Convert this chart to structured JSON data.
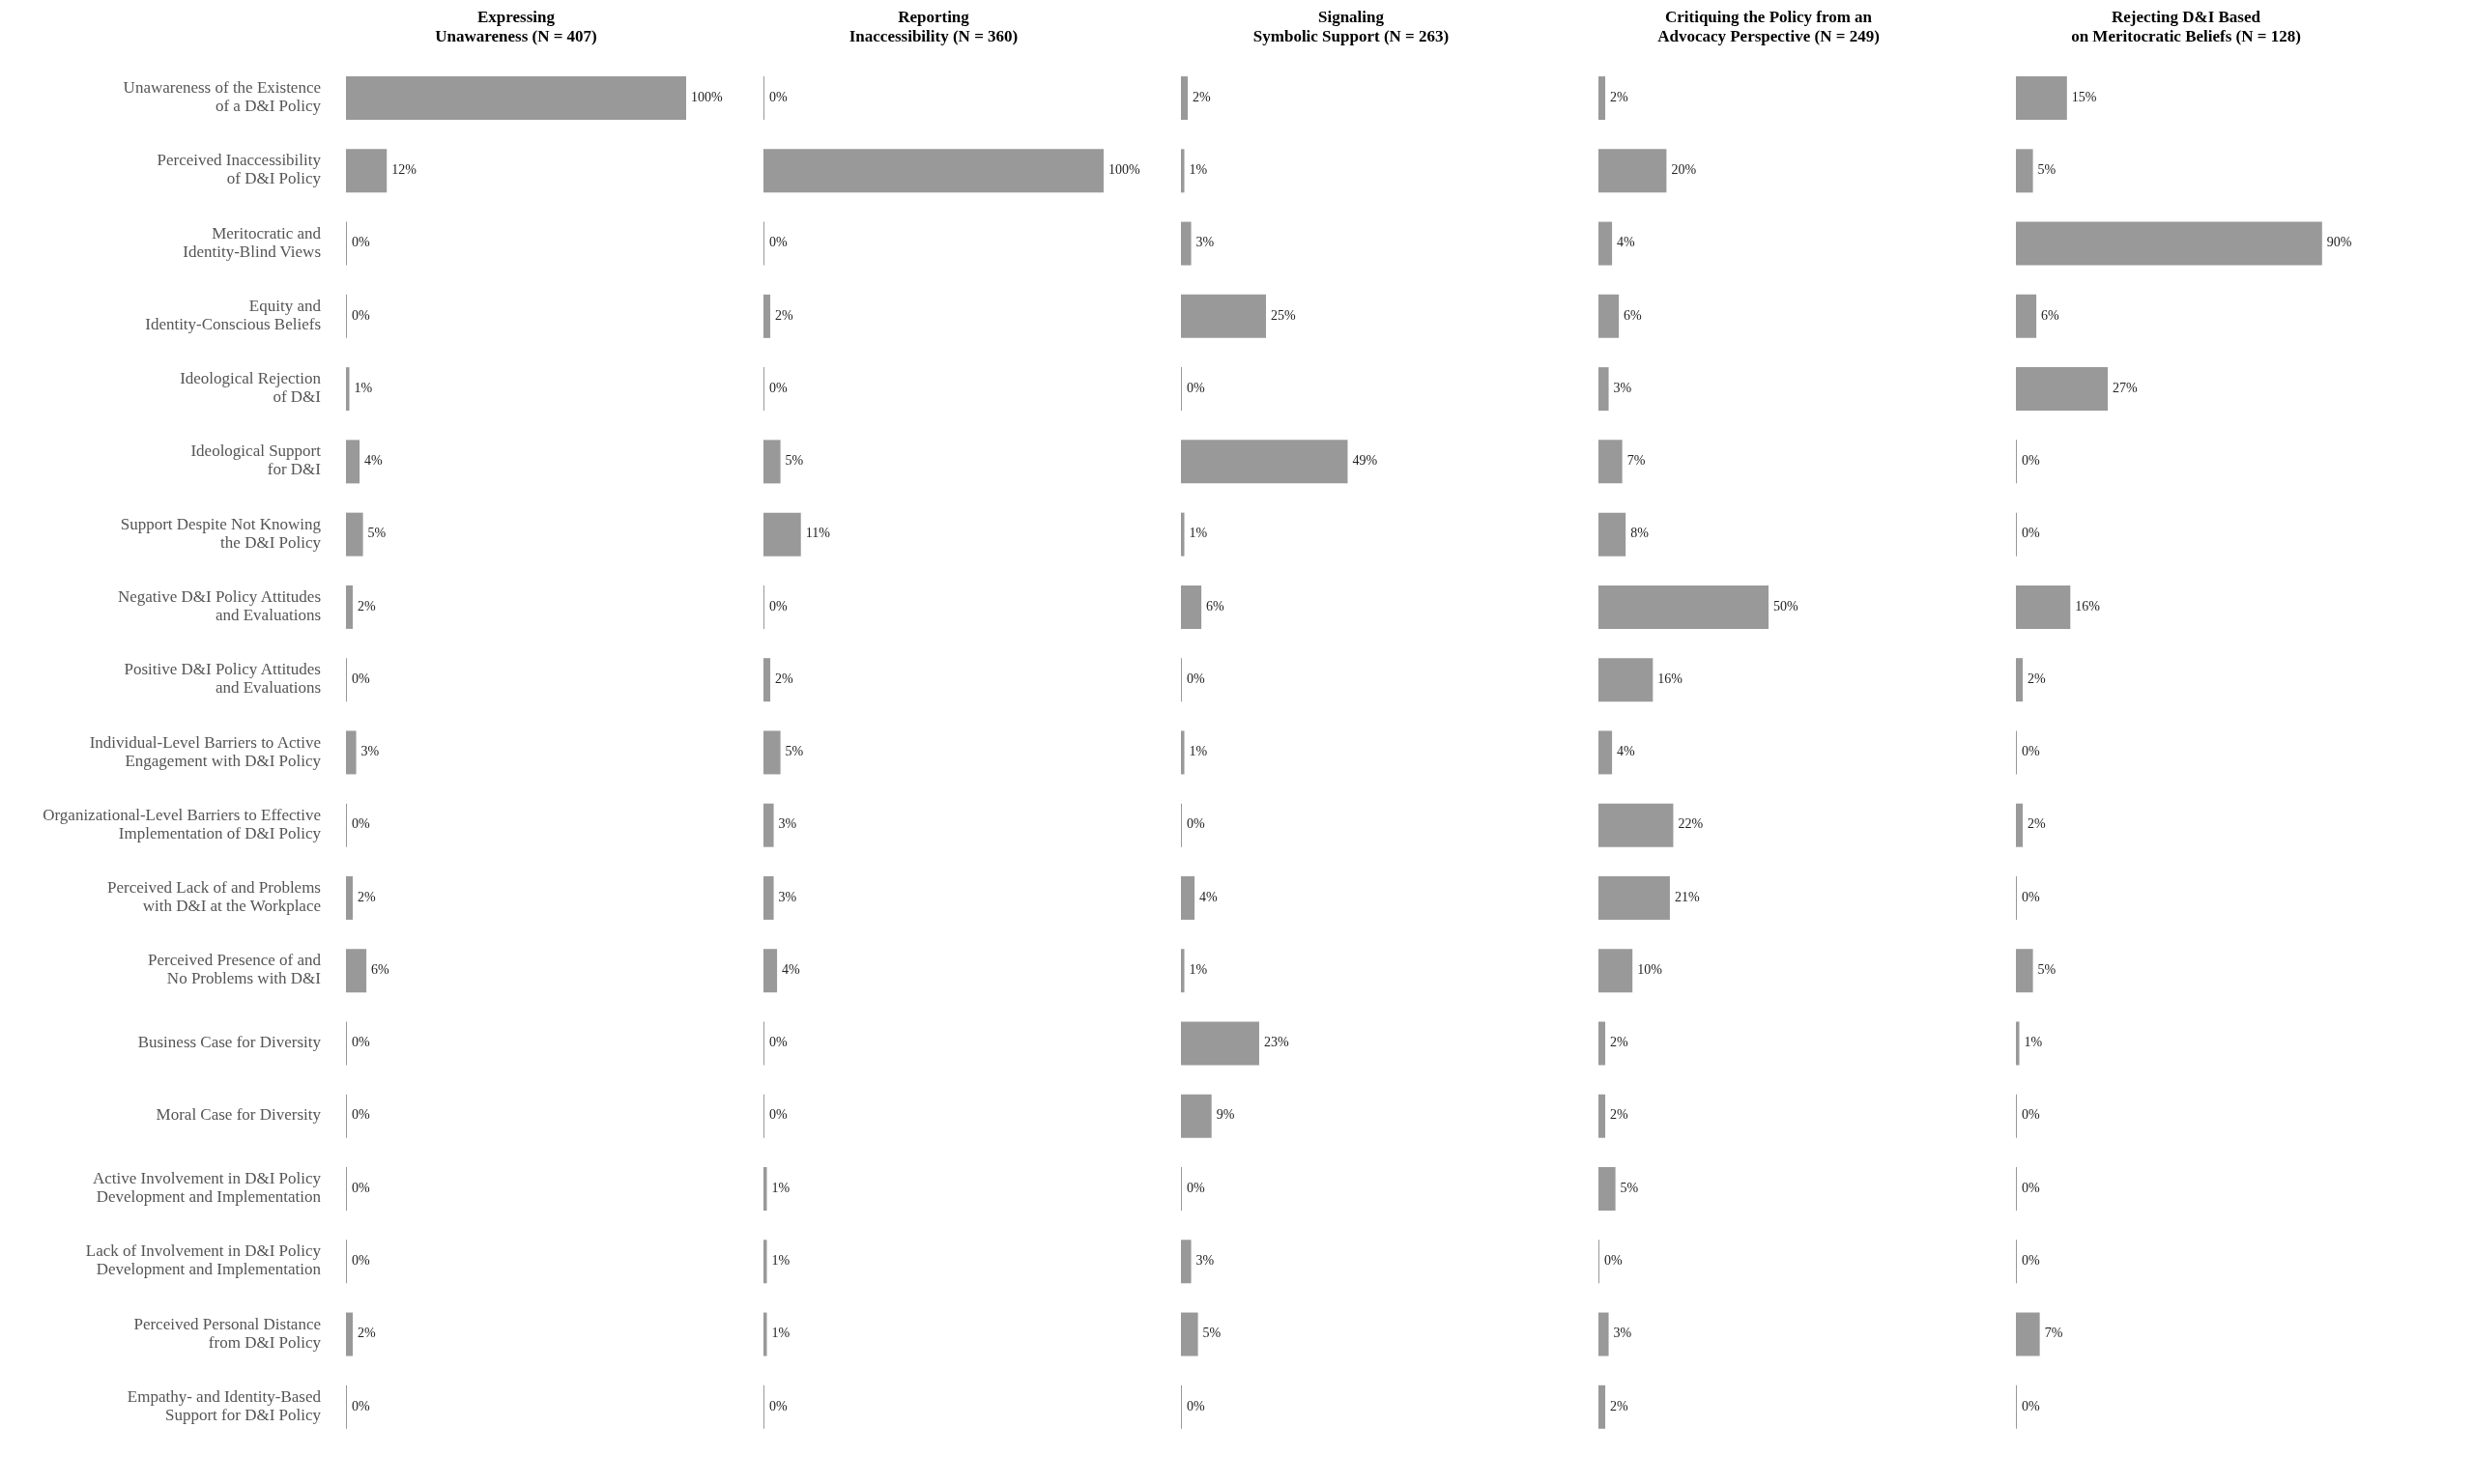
{
  "chart_data": [
    {
      "type": "bar",
      "orientation": "horizontal",
      "title": "Expressing\nUnawareness (N = 407)",
      "color": "#999999",
      "tick_labels": "y",
      "categories": [
        "Unawareness of the Existence\nof a D&I Policy",
        "Perceived Inaccessibility\nof D&I Policy",
        "Meritocratic and\nIdentity-Blind Views",
        "Equity and\nIdentity-Conscious Beliefs",
        "Ideological Rejection\nof D&I",
        "Ideological Support\nfor D&I",
        "Support Despite Not Knowing\nthe D&I Policy",
        "Negative D&I Policy Attitudes\nand Evaluations",
        "Positive D&I Policy Attitudes\nand Evaluations",
        "Individual-Level Barriers to Active\nEngagement with D&I Policy",
        "Organizational-Level Barriers to Effective\nImplementation of D&I Policy",
        "Perceived Lack of and Problems\nwith D&I at the Workplace",
        "Perceived Presence of and\nNo Problems with D&I",
        "Business Case for Diversity",
        "Moral Case for Diversity",
        "Active Involvement in D&I Policy\nDevelopment and Implementation",
        "Lack of Involvement in D&I Policy\nDevelopment and Implementation",
        "Perceived Personal Distance\nfrom D&I Policy",
        "Empathy- and Identity-Based\nSupport for D&I Policy"
      ],
      "values": [
        100,
        12,
        0,
        0,
        1,
        4,
        5,
        2,
        0,
        3,
        0,
        2,
        6,
        0,
        0,
        0,
        0,
        2,
        0
      ],
      "value_labels": [
        "100%",
        "12%",
        "0%",
        "0%",
        "1%",
        "4%",
        "5%",
        "2%",
        "0%",
        "3%",
        "0%",
        "2%",
        "6%",
        "0%",
        "0%",
        "0%",
        "0%",
        "2%",
        "0%"
      ]
    },
    {
      "type": "bar",
      "orientation": "horizontal",
      "title": "Reporting\nInaccessibility (N = 360)",
      "color": "#999999",
      "tick_labels": false,
      "values": [
        0,
        100,
        0,
        2,
        0,
        5,
        11,
        0,
        2,
        5,
        3,
        3,
        4,
        0,
        0,
        1,
        1,
        1,
        0
      ],
      "value_labels": [
        "0%",
        "100%",
        "0%",
        "2%",
        "0%",
        "5%",
        "11%",
        "0%",
        "2%",
        "5%",
        "3%",
        "3%",
        "4%",
        "0%",
        "0%",
        "1%",
        "1%",
        "1%",
        "0%"
      ]
    },
    {
      "type": "bar",
      "orientation": "horizontal",
      "title": "Signaling\nSymbolic Support (N = 263)",
      "color": "#999999",
      "tick_labels": false,
      "values": [
        2,
        1,
        3,
        25,
        0,
        49,
        1,
        6,
        0,
        1,
        0,
        4,
        1,
        23,
        9,
        0,
        3,
        5,
        0
      ],
      "value_labels": [
        "2%",
        "1%",
        "3%",
        "25%",
        "0%",
        "49%",
        "1%",
        "6%",
        "0%",
        "1%",
        "0%",
        "4%",
        "1%",
        "23%",
        "9%",
        "0%",
        "3%",
        "5%",
        "0%"
      ]
    },
    {
      "type": "bar",
      "orientation": "horizontal",
      "title": "Critiquing the Policy from an\nAdvocacy Perspective (N = 249)",
      "color": "#999999",
      "tick_labels": false,
      "values": [
        2,
        20,
        4,
        6,
        3,
        7,
        8,
        50,
        16,
        4,
        22,
        21,
        10,
        2,
        2,
        5,
        0,
        3,
        2
      ],
      "value_labels": [
        "2%",
        "20%",
        "4%",
        "6%",
        "3%",
        "7%",
        "8%",
        "50%",
        "16%",
        "4%",
        "22%",
        "21%",
        "10%",
        "2%",
        "2%",
        "5%",
        "0%",
        "3%",
        "2%"
      ]
    },
    {
      "type": "bar",
      "orientation": "horizontal",
      "title": "Rejecting D&I Based\non Meritocratic Beliefs (N = 128)",
      "color": "#999999",
      "tick_labels": false,
      "values": [
        15,
        5,
        90,
        6,
        27,
        0,
        0,
        16,
        2,
        0,
        2,
        0,
        5,
        1,
        0,
        0,
        0,
        7,
        0
      ],
      "value_labels": [
        "15%",
        "5%",
        "90%",
        "6%",
        "27%",
        "0%",
        "0%",
        "16%",
        "2%",
        "0%",
        "2%",
        "0%",
        "5%",
        "1%",
        "0%",
        "0%",
        "0%",
        "7%",
        "0%"
      ]
    }
  ]
}
